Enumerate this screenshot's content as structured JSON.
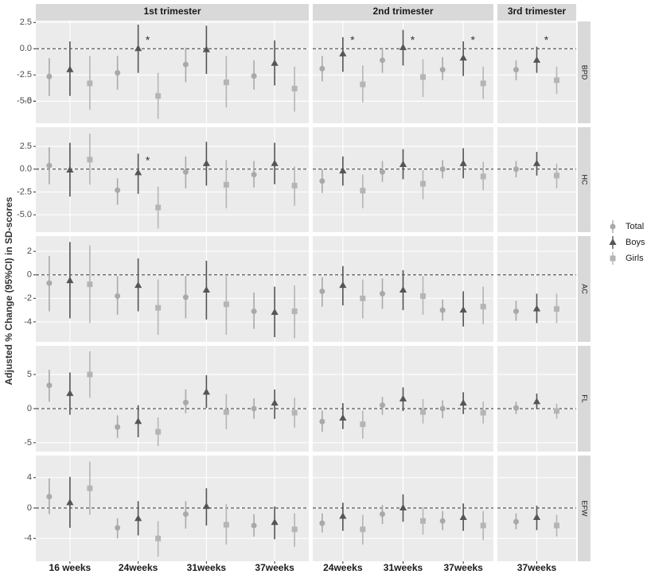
{
  "chart_data": {
    "type": "pointrange-facets",
    "y_label": "Adjusted % Change (95%CI) in SD-scores",
    "reference_line": 0,
    "facets": [
      {
        "title": "1st trimester",
        "categories": [
          "16 weeks",
          "24weeks",
          "31weeks",
          "37weeks"
        ]
      },
      {
        "title": "2nd trimester",
        "categories": [
          "24weeks",
          "31weeks",
          "37weeks"
        ]
      },
      {
        "title": "3rd trimester",
        "categories": [
          "37weeks"
        ]
      }
    ],
    "series": [
      {
        "name": "Total",
        "color": "#a9a9a9",
        "marker": "circle"
      },
      {
        "name": "Boys",
        "color": "#555555",
        "marker": "triangle"
      },
      {
        "name": "Girls",
        "color": "#b5b5b5",
        "marker": "square"
      }
    ],
    "rows": [
      {
        "panel": "BPD",
        "ylim": [
          -7.1,
          2.6
        ],
        "yticks": [
          -5,
          {
            "value": -5,
            "label": "-5.0"
          },
          -2.5,
          {
            "value": 0,
            "label": "0.0"
          },
          2.5
        ],
        "annotations": [
          {
            "text": "*",
            "index": 1
          },
          {
            "text": "*",
            "index": 4
          },
          {
            "text": "*",
            "index": 5
          },
          {
            "text": "*",
            "index": 6
          },
          {
            "text": "*",
            "index": 7
          }
        ],
        "series": [
          {
            "values": [
              -2.65,
              -2.3,
              -1.5,
              -2.6,
              -1.9,
              -1.1,
              -2.0,
              -2.0
            ],
            "lower": [
              -4.5,
              -3.9,
              -3.2,
              -3.9,
              -3.1,
              -2.3,
              -3.0,
              -3.0
            ],
            "upper": [
              -0.9,
              -0.7,
              0.1,
              -1.1,
              -0.7,
              0.1,
              -0.8,
              -1.1
            ]
          },
          {
            "values": [
              -2.0,
              0.0,
              -0.1,
              -1.4,
              -0.5,
              0.1,
              -0.9,
              -1.1
            ],
            "lower": [
              -4.5,
              -2.3,
              -2.4,
              -3.5,
              -2.2,
              -1.6,
              -2.6,
              -2.3
            ],
            "upper": [
              0.7,
              2.3,
              2.2,
              0.8,
              1.1,
              1.8,
              0.7,
              0.2
            ]
          },
          {
            "values": [
              -3.3,
              -4.5,
              -3.2,
              -3.8,
              -3.4,
              -2.7,
              -3.3,
              -3.0
            ],
            "lower": [
              -5.8,
              -6.7,
              -5.6,
              -6.0,
              -5.1,
              -4.6,
              -4.8,
              -4.3
            ],
            "upper": [
              -0.7,
              -2.3,
              -0.7,
              -1.7,
              -1.6,
              -1.0,
              -1.7,
              -1.7
            ]
          }
        ]
      },
      {
        "panel": "HC",
        "ylim": [
          -6.9,
          4.6
        ],
        "yticks": [
          {
            "value": -5,
            "label": "-5.0"
          },
          -2.5,
          {
            "value": 0,
            "label": "0.0"
          },
          2.5
        ],
        "annotations": [
          {
            "text": "*",
            "index": 1
          }
        ],
        "series": [
          {
            "values": [
              0.4,
              -2.3,
              -0.3,
              -0.6,
              -1.3,
              -0.3,
              0.0,
              0.0
            ],
            "lower": [
              -1.65,
              -3.9,
              -2.1,
              -2.0,
              -2.6,
              -1.4,
              -1.0,
              -0.9
            ],
            "upper": [
              2.4,
              -1.0,
              1.4,
              0.9,
              0.0,
              0.9,
              1.0,
              0.9
            ]
          },
          {
            "values": [
              -0.1,
              -0.4,
              0.6,
              0.6,
              -0.2,
              0.5,
              0.6,
              0.6
            ],
            "lower": [
              -3.0,
              -2.7,
              -1.8,
              -1.65,
              -1.8,
              -1.1,
              -1.0,
              -0.7
            ],
            "upper": [
              2.9,
              1.7,
              3.0,
              2.9,
              1.4,
              2.2,
              2.3,
              1.9
            ]
          },
          {
            "values": [
              1.05,
              -4.2,
              -1.7,
              -1.8,
              -2.35,
              -1.6,
              -0.8,
              -0.7
            ],
            "lower": [
              -1.7,
              -6.5,
              -4.3,
              -4.0,
              -4.3,
              -3.3,
              -2.3,
              -2.1
            ],
            "upper": [
              3.9,
              -1.9,
              1.0,
              0.3,
              -0.6,
              -0.1,
              0.8,
              0.6
            ]
          }
        ]
      },
      {
        "panel": "AC",
        "ylim": [
          -5.7,
          3.3
        ],
        "yticks": [
          -4,
          -2,
          0,
          2
        ],
        "annotations": [],
        "series": [
          {
            "values": [
              -0.7,
              -1.8,
              -1.9,
              -3.1,
              -1.4,
              -1.6,
              -3.0,
              -3.1
            ],
            "lower": [
              -3.1,
              -3.4,
              -3.7,
              -4.6,
              -2.7,
              -2.9,
              -3.9,
              -3.9
            ],
            "upper": [
              1.6,
              -0.1,
              -0.1,
              -1.5,
              -0.2,
              -0.3,
              -2.1,
              -2.2
            ]
          },
          {
            "values": [
              -0.5,
              -0.9,
              -1.3,
              -3.2,
              -0.9,
              -1.3,
              -3.0,
              -2.9
            ],
            "lower": [
              -3.7,
              -3.1,
              -3.8,
              -5.3,
              -2.6,
              -3.0,
              -4.4,
              -4.1
            ],
            "upper": [
              2.8,
              1.4,
              1.2,
              -1.0,
              0.75,
              0.4,
              -1.4,
              -1.6
            ]
          },
          {
            "values": [
              -0.8,
              -2.8,
              -2.5,
              -3.1,
              -2.0,
              -1.8,
              -2.7,
              -2.9
            ],
            "lower": [
              -4.1,
              -5.1,
              -5.1,
              -5.4,
              -3.7,
              -3.4,
              -4.2,
              -4.1
            ],
            "upper": [
              2.5,
              -0.4,
              -0.1,
              -0.9,
              -0.4,
              -0.1,
              -1.0,
              -1.6
            ]
          }
        ]
      },
      {
        "panel": "FL",
        "ylim": [
          -6.3,
          9.2
        ],
        "yticks": [
          -5,
          0,
          5
        ],
        "annotations": [],
        "series": [
          {
            "values": [
              3.4,
              -2.7,
              0.9,
              0.0,
              -1.9,
              0.5,
              0.0,
              0.1
            ],
            "lower": [
              1.0,
              -4.3,
              -0.7,
              -1.5,
              -3.4,
              -0.9,
              -1.4,
              -0.8
            ],
            "upper": [
              5.7,
              -1.0,
              2.8,
              1.5,
              -0.3,
              1.7,
              1.2,
              1.0
            ]
          },
          {
            "values": [
              2.2,
              -1.9,
              2.4,
              0.8,
              -1.4,
              1.4,
              0.8,
              1.0
            ],
            "lower": [
              -0.9,
              -4.2,
              0.1,
              -1.5,
              -3.0,
              -0.35,
              -0.8,
              -0.1
            ],
            "upper": [
              5.3,
              0.5,
              4.9,
              2.8,
              0.8,
              3.1,
              2.4,
              2.2
            ]
          },
          {
            "values": [
              5.0,
              -3.4,
              -0.5,
              -0.6,
              -2.3,
              -0.5,
              -0.6,
              -0.35
            ],
            "lower": [
              1.6,
              -5.5,
              -3.0,
              -2.8,
              -4.4,
              -2.2,
              -2.2,
              -1.5
            ],
            "upper": [
              8.4,
              -1.3,
              2.1,
              1.6,
              -0.3,
              1.4,
              1.0,
              0.7
            ]
          }
        ]
      },
      {
        "panel": "EFW",
        "ylim": [
          -7.0,
          6.9
        ],
        "yticks": [
          -4,
          0,
          4
        ],
        "annotations": [],
        "series": [
          {
            "values": [
              1.5,
              -2.6,
              -0.8,
              -2.3,
              -2.0,
              -0.8,
              -1.7,
              -1.8
            ],
            "lower": [
              -0.8,
              -4.0,
              -2.7,
              -3.75,
              -3.2,
              -2.1,
              -2.9,
              -2.8
            ],
            "upper": [
              3.9,
              -1.35,
              0.9,
              -0.8,
              -0.7,
              0.4,
              -0.4,
              -0.7
            ]
          },
          {
            "values": [
              0.7,
              -1.4,
              0.2,
              -1.9,
              -1.1,
              0.0,
              -1.25,
              -1.25
            ],
            "lower": [
              -2.6,
              -3.6,
              -2.3,
              -4.1,
              -3.0,
              -1.8,
              -3.0,
              -2.9
            ],
            "upper": [
              4.1,
              0.9,
              2.6,
              0.2,
              0.7,
              1.8,
              0.6,
              0.3
            ]
          },
          {
            "values": [
              2.6,
              -4.0,
              -2.2,
              -2.8,
              -2.8,
              -1.7,
              -2.3,
              -2.3
            ],
            "lower": [
              -0.9,
              -6.4,
              -4.8,
              -5.1,
              -4.8,
              -3.5,
              -4.2,
              -3.75
            ],
            "upper": [
              6.1,
              -1.7,
              0.5,
              -0.7,
              -0.9,
              0.1,
              -0.4,
              -0.9
            ]
          }
        ]
      }
    ]
  }
}
